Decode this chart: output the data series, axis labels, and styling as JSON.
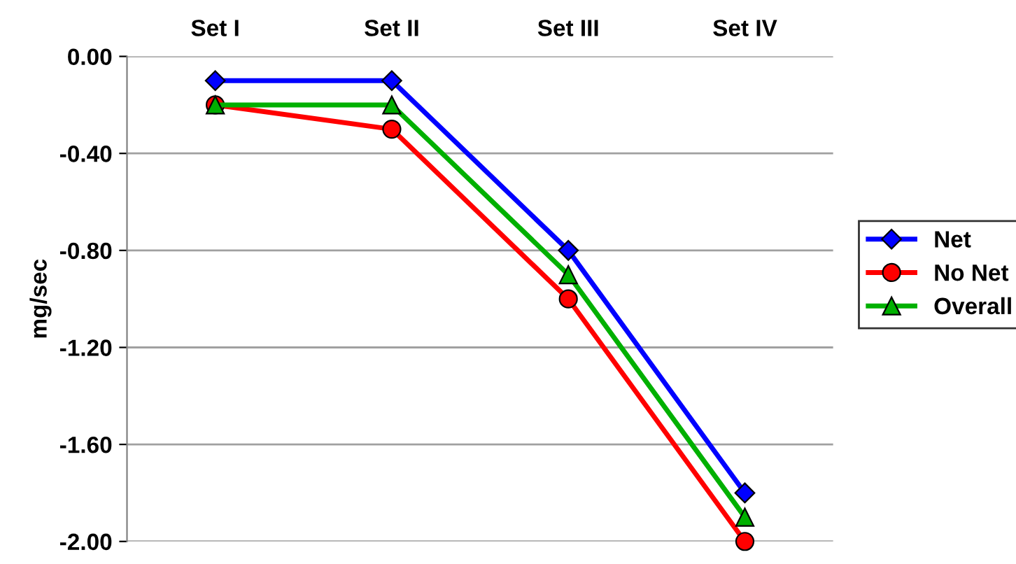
{
  "chart_data": {
    "type": "line",
    "ylabel": "mg/sec",
    "categories": [
      "Set I",
      "Set II",
      "Set III",
      "Set IV"
    ],
    "series": [
      {
        "name": "Net",
        "color": "#0000ff",
        "marker": "diamond",
        "values": [
          -0.1,
          -0.1,
          -0.8,
          -1.8
        ]
      },
      {
        "name": "No Net",
        "color": "#ff0000",
        "marker": "circle",
        "values": [
          -0.2,
          -0.3,
          -1.0,
          -2.0
        ]
      },
      {
        "name": "Overall",
        "color": "#00b000",
        "marker": "triangle",
        "values": [
          -0.2,
          -0.2,
          -0.9,
          -1.9
        ]
      }
    ],
    "ylim": [
      -2.0,
      0.0
    ],
    "yticks": [
      {
        "value": 0.0,
        "label": "0.00"
      },
      {
        "value": -0.4,
        "label": "-0.40"
      },
      {
        "value": -0.8,
        "label": "-0.80"
      },
      {
        "value": -1.2,
        "label": "-1.20"
      },
      {
        "value": -1.6,
        "label": "-1.60"
      },
      {
        "value": -2.0,
        "label": "-2.00"
      }
    ],
    "grid": "y",
    "legend": "right",
    "line_style": "solid"
  }
}
